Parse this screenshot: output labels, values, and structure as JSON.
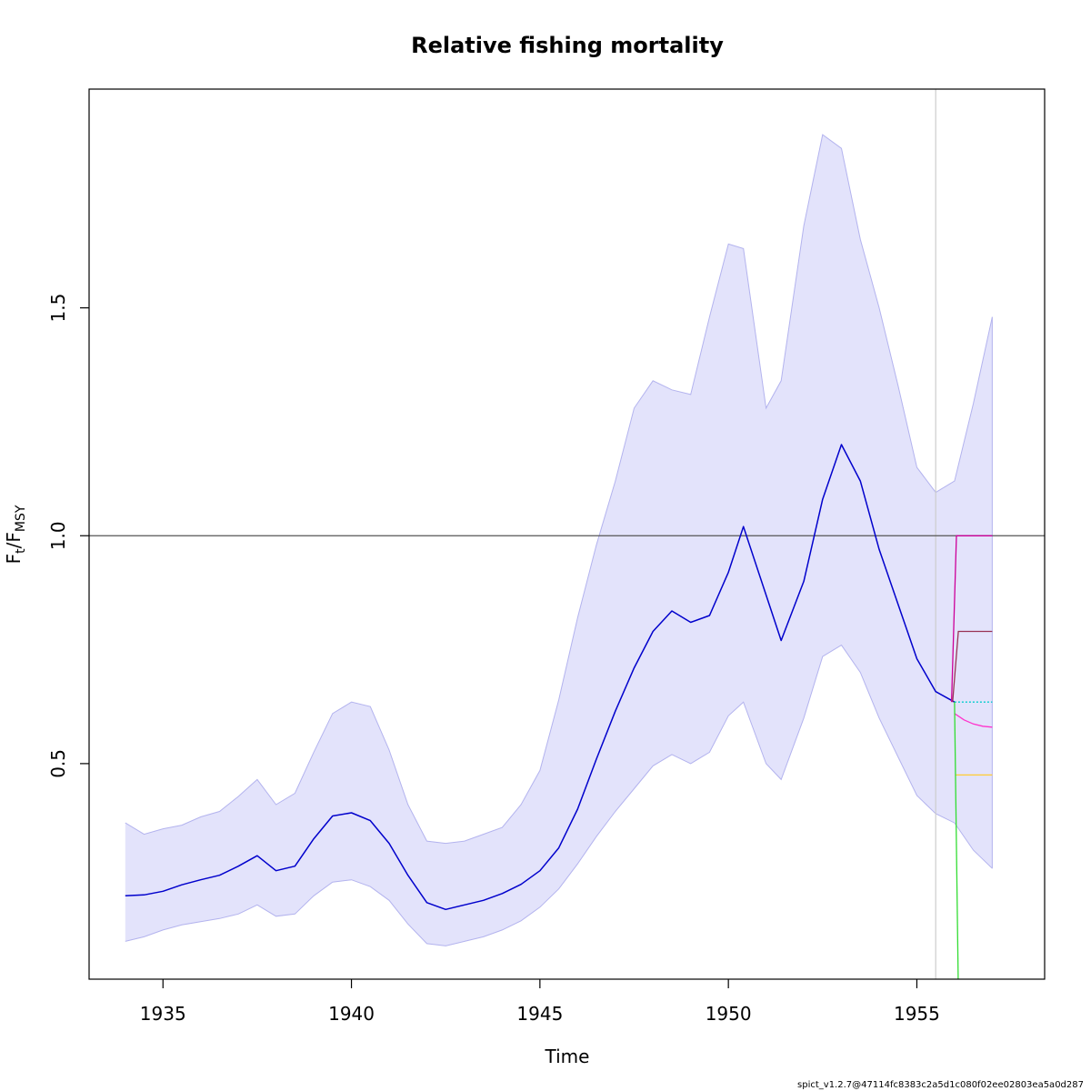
{
  "chart_data": {
    "type": "line",
    "title": "Relative fishing mortality",
    "xlabel": "Time",
    "ylabel": {
      "main": "F",
      "sub1": "t",
      "slash": "/F",
      "sub2": "MSY"
    },
    "xlim": [
      1933.04,
      1958.39
    ],
    "ylim": [
      0.027,
      1.98
    ],
    "x_ticks": [
      1935,
      1940,
      1945,
      1950,
      1955
    ],
    "y_ticks": [
      0.5,
      1.0,
      1.5
    ],
    "y_tick_labels": [
      "0.5",
      "1.0",
      "1.5"
    ],
    "reference_line": {
      "y": 1.0,
      "color": "#555555"
    },
    "vertical_marker": {
      "x": 1955.5,
      "color": "#cccccc"
    },
    "band_color": "#e3e3fb",
    "band_edge_color": "#b3b3ee",
    "x": [
      1934.0,
      1934.5,
      1935.0,
      1935.5,
      1936.0,
      1936.5,
      1937.0,
      1937.5,
      1938.0,
      1938.5,
      1939.0,
      1939.5,
      1940.0,
      1940.5,
      1941.0,
      1941.5,
      1942.0,
      1942.5,
      1943.0,
      1943.5,
      1944.0,
      1944.5,
      1945.0,
      1945.5,
      1946.0,
      1946.5,
      1947.0,
      1947.5,
      1948.0,
      1948.5,
      1949.0,
      1949.5,
      1950.0,
      1950.4,
      1951.0,
      1951.4,
      1952.0,
      1952.5,
      1953.0,
      1953.5,
      1954.0,
      1954.5,
      1955.0,
      1955.5,
      1956.0
    ],
    "series": [
      {
        "name": "",
        "color": "#0000cc",
        "values": [
          0.21,
          0.212,
          0.22,
          0.234,
          0.245,
          0.255,
          0.275,
          0.298,
          0.265,
          0.275,
          0.335,
          0.385,
          0.392,
          0.375,
          0.325,
          0.255,
          0.195,
          0.18,
          0.19,
          0.2,
          0.215,
          0.235,
          0.265,
          0.315,
          0.4,
          0.51,
          0.615,
          0.71,
          0.79,
          0.835,
          0.81,
          0.825,
          0.92,
          1.02,
          0.87,
          0.77,
          0.9,
          1.08,
          1.2,
          1.12,
          0.97,
          0.85,
          0.73,
          0.658,
          0.635
        ]
      },
      {
        "name": "",
        "color": "#b3b3ee",
        "values": [
          0.37,
          0.345,
          0.357,
          0.365,
          0.383,
          0.395,
          0.428,
          0.465,
          0.41,
          0.435,
          0.525,
          0.61,
          0.635,
          0.625,
          0.53,
          0.41,
          0.33,
          0.325,
          0.33,
          0.345,
          0.36,
          0.41,
          0.485,
          0.64,
          0.82,
          0.98,
          1.12,
          1.28,
          1.34,
          1.32,
          1.31,
          1.48,
          1.64,
          1.63,
          1.28,
          1.34,
          1.68,
          1.88,
          1.85,
          1.65,
          1.5,
          1.33,
          1.15,
          1.095,
          1.12
        ]
      },
      {
        "name": "",
        "color": "#b3b3ee",
        "values": [
          0.11,
          0.12,
          0.135,
          0.146,
          0.153,
          0.16,
          0.17,
          0.19,
          0.165,
          0.17,
          0.21,
          0.24,
          0.245,
          0.23,
          0.2,
          0.148,
          0.105,
          0.1,
          0.11,
          0.12,
          0.135,
          0.155,
          0.185,
          0.225,
          0.28,
          0.34,
          0.395,
          0.445,
          0.495,
          0.52,
          0.5,
          0.525,
          0.605,
          0.635,
          0.5,
          0.465,
          0.6,
          0.735,
          0.76,
          0.7,
          0.6,
          0.515,
          0.43,
          0.39,
          0.37
        ]
      }
    ],
    "forecast_band": {
      "x": [
        1956.0,
        1956.5,
        1957.0
      ],
      "upper": [
        1.12,
        1.29,
        1.48
      ],
      "lower": [
        0.37,
        0.31,
        0.27
      ]
    },
    "scenarios": [
      {
        "color": "#00cccc",
        "dashed": true,
        "x": [
          1956.0,
          1957.0
        ],
        "values": [
          0.635,
          0.635
        ]
      },
      {
        "color": "#ff33cc",
        "x": [
          1956.0,
          1956.25,
          1956.5,
          1956.75,
          1957.0
        ],
        "values": [
          0.61,
          0.596,
          0.587,
          0.582,
          0.58
        ]
      },
      {
        "color": "#cc0099",
        "x": [
          1955.92,
          1956.05,
          1957.0
        ],
        "values": [
          0.635,
          1.0,
          1.0
        ]
      },
      {
        "color": "#993355",
        "x": [
          1955.95,
          1956.1,
          1957.0
        ],
        "values": [
          0.635,
          0.79,
          0.79
        ]
      },
      {
        "color": "#ffcc33",
        "x": [
          1956.02,
          1957.0
        ],
        "values": [
          0.475,
          0.475
        ]
      },
      {
        "color": "#33dd33",
        "x": [
          1956.0,
          1956.1
        ],
        "values": [
          0.635,
          0.0
        ]
      }
    ]
  },
  "footer": {
    "text": "spict_v1.2.7@47114fc8383c2a5d1c080f02ee02803ea5a0d287"
  }
}
